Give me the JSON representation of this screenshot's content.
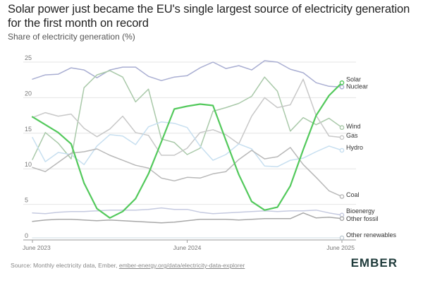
{
  "header": {
    "title": "Solar power just became the EU's single largest source of electricity generation for the first month on record",
    "subtitle": "Share of electricity generation (%)"
  },
  "footer": {
    "source_prefix": "Source: Monthly electricity data, Ember, ",
    "source_link": "ember-energy.org/data/electricity-data-explorer",
    "logo": "EMBER"
  },
  "chart_data": {
    "type": "line",
    "title": "Solar power just became the EU's single largest source of electricity generation for the first month on record",
    "ylabel": "Share of electricity generation (%)",
    "ylim": [
      0,
      25
    ],
    "yticks": [
      0,
      5,
      10,
      15,
      20,
      25
    ],
    "x_tick_labels": [
      "June 2023",
      "June 2024",
      "June 2025"
    ],
    "x": [
      "2023-06",
      "2023-07",
      "2023-08",
      "2023-09",
      "2023-10",
      "2023-11",
      "2023-12",
      "2024-01",
      "2024-02",
      "2024-03",
      "2024-04",
      "2024-05",
      "2024-06",
      "2024-07",
      "2024-08",
      "2024-09",
      "2024-10",
      "2024-11",
      "2024-12",
      "2025-01",
      "2025-02",
      "2025-03",
      "2025-04",
      "2025-05",
      "2025-06"
    ],
    "grid": true,
    "legend": "right-end labels",
    "series": [
      {
        "name": "Nuclear",
        "color": "#a9aed2",
        "highlight": false,
        "values": [
          22.6,
          23.2,
          23.3,
          24.2,
          23.9,
          22.8,
          23.9,
          24.3,
          24.3,
          23.0,
          22.4,
          22.9,
          23.1,
          24.2,
          25.0,
          24.1,
          24.5,
          23.9,
          25.2,
          25.0,
          24.0,
          23.5,
          22.1,
          21.6,
          21.5
        ]
      },
      {
        "name": "Solar",
        "color": "#53c95c",
        "highlight": true,
        "values": [
          17.3,
          16.2,
          15.1,
          13.5,
          8.0,
          4.4,
          3.1,
          4.0,
          5.8,
          9.3,
          13.8,
          18.4,
          18.8,
          19.1,
          18.9,
          14.0,
          9.2,
          5.4,
          4.2,
          4.6,
          7.6,
          12.7,
          17.5,
          20.3,
          22.1
        ]
      },
      {
        "name": "Wind",
        "color": "#a9c9a9",
        "highlight": false,
        "values": [
          11.3,
          15.1,
          13.6,
          11.4,
          21.4,
          23.2,
          23.8,
          22.9,
          19.4,
          21.2,
          14.2,
          13.7,
          12.0,
          12.9,
          18.1,
          18.6,
          19.2,
          20.2,
          22.9,
          20.9,
          15.3,
          17.2,
          16.2,
          17.1,
          15.8
        ]
      },
      {
        "name": "Gas",
        "color": "#c8c8c8",
        "highlight": false,
        "values": [
          17.2,
          17.9,
          17.4,
          17.7,
          15.7,
          14.5,
          15.6,
          17.4,
          15.1,
          14.7,
          11.9,
          11.9,
          12.9,
          15.1,
          15.5,
          14.8,
          13.5,
          17.4,
          20.0,
          18.6,
          19.0,
          22.6,
          17.5,
          14.6,
          14.4
        ]
      },
      {
        "name": "Hydro",
        "color": "#c7dff0",
        "highlight": false,
        "values": [
          14.4,
          11.0,
          12.3,
          12.0,
          10.6,
          13.2,
          14.8,
          14.6,
          13.4,
          15.9,
          16.6,
          16.4,
          15.8,
          13.2,
          11.2,
          12.0,
          13.5,
          12.8,
          10.4,
          10.3,
          11.2,
          11.5,
          12.4,
          13.2,
          12.6
        ]
      },
      {
        "name": "Coal",
        "color": "#b8b8b8",
        "highlight": false,
        "values": [
          10.2,
          9.6,
          10.9,
          12.2,
          12.4,
          12.8,
          11.9,
          11.2,
          10.5,
          10.1,
          8.7,
          8.3,
          8.8,
          8.7,
          9.3,
          9.6,
          11.3,
          12.6,
          11.4,
          11.7,
          13.0,
          10.6,
          8.8,
          6.9,
          6.1
        ]
      },
      {
        "name": "Bioenergy",
        "color": "#c5cae0",
        "highlight": false,
        "values": [
          3.8,
          3.7,
          3.9,
          4.0,
          4.0,
          4.1,
          4.2,
          4.2,
          4.2,
          4.3,
          4.5,
          4.3,
          4.3,
          3.9,
          3.7,
          3.8,
          3.9,
          4.0,
          4.1,
          4.0,
          4.1,
          4.1,
          4.2,
          3.8,
          3.5
        ]
      },
      {
        "name": "Other fossil",
        "color": "#a8a8a8",
        "highlight": false,
        "values": [
          2.6,
          2.8,
          2.9,
          2.9,
          2.8,
          2.7,
          2.8,
          2.7,
          2.6,
          2.5,
          2.4,
          2.5,
          2.7,
          2.9,
          2.9,
          2.9,
          2.8,
          2.9,
          3.0,
          3.0,
          3.0,
          3.8,
          3.1,
          3.2,
          3.0
        ]
      },
      {
        "name": "Other renewables",
        "color": "#dfe8ee",
        "highlight": false,
        "values": [
          0.3,
          0.3,
          0.3,
          0.3,
          0.3,
          0.3,
          0.3,
          0.3,
          0.3,
          0.3,
          0.3,
          0.3,
          0.3,
          0.3,
          0.3,
          0.3,
          0.3,
          0.3,
          0.3,
          0.3,
          0.3,
          0.3,
          0.3,
          0.3,
          0.3
        ]
      }
    ]
  }
}
